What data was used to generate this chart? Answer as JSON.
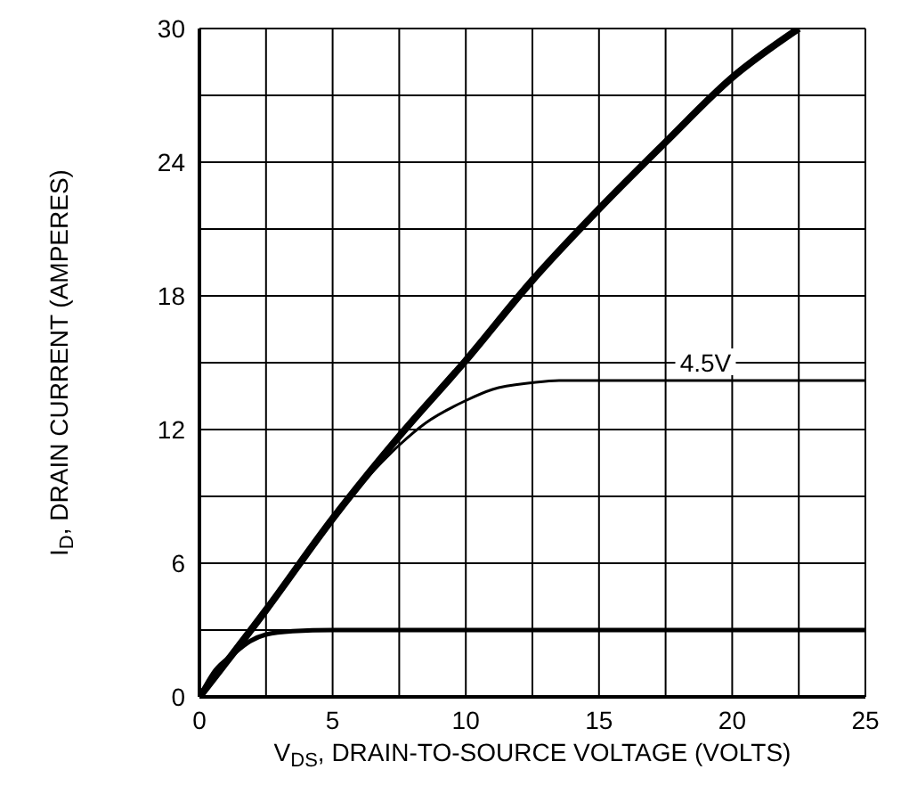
{
  "chart_data": {
    "type": "line",
    "xlabel": "V$_{DS}$, DRAIN-TO-SOURCE VOLTAGE (VOLTS)",
    "ylabel": "I$_{D}$, DRAIN CURRENT (AMPERES)",
    "xlim": [
      0,
      25
    ],
    "ylim": [
      0,
      30
    ],
    "xticks": [
      0,
      {
        "value": 2.5,
        "label": null
      },
      5,
      {
        "value": 7.5,
        "label": null
      },
      10,
      {
        "value": 12.5,
        "label": null
      },
      15,
      {
        "value": 17.5,
        "label": null
      },
      20,
      {
        "value": 22.5,
        "label": null
      },
      25
    ],
    "yticks": [
      0,
      {
        "value": 3,
        "label": null
      },
      6,
      {
        "value": 9,
        "label": null
      },
      12,
      {
        "value": 15,
        "label": null
      },
      18,
      {
        "value": 21,
        "label": null
      },
      24,
      {
        "value": 27,
        "label": null
      },
      30
    ],
    "grid": true,
    "marker": "none",
    "line_style": "solid",
    "series": [
      {
        "color": "#000000",
        "x": [
          0,
          2.5,
          5,
          7.5,
          10,
          12.5,
          15,
          17.5,
          20,
          22.5
        ],
        "values": [
          0,
          3.9,
          8.0,
          11.7,
          15.1,
          18.7,
          21.9,
          24.9,
          27.8,
          30
        ]
      },
      {
        "color": "#000000",
        "x": [
          0,
          2.5,
          5,
          6.5,
          7.5,
          8.5,
          10,
          11,
          12.5,
          13.5,
          15,
          20,
          25
        ],
        "values": [
          0,
          3.9,
          8.0,
          10.1,
          11.3,
          12.3,
          13.3,
          13.8,
          14.1,
          14.2,
          14.2,
          14.2,
          14.2
        ]
      },
      {
        "color": "#000000",
        "x": [
          0,
          0.6,
          1.25,
          1.9,
          2.5,
          3.5,
          5,
          10,
          15,
          20,
          25
        ],
        "values": [
          0,
          1.2,
          1.9,
          2.5,
          2.8,
          2.95,
          3.0,
          3.0,
          3.0,
          3.0,
          3.0
        ]
      }
    ],
    "annotations": [
      {
        "text": "4.5V",
        "x": 19,
        "y": 14.2
      }
    ]
  }
}
